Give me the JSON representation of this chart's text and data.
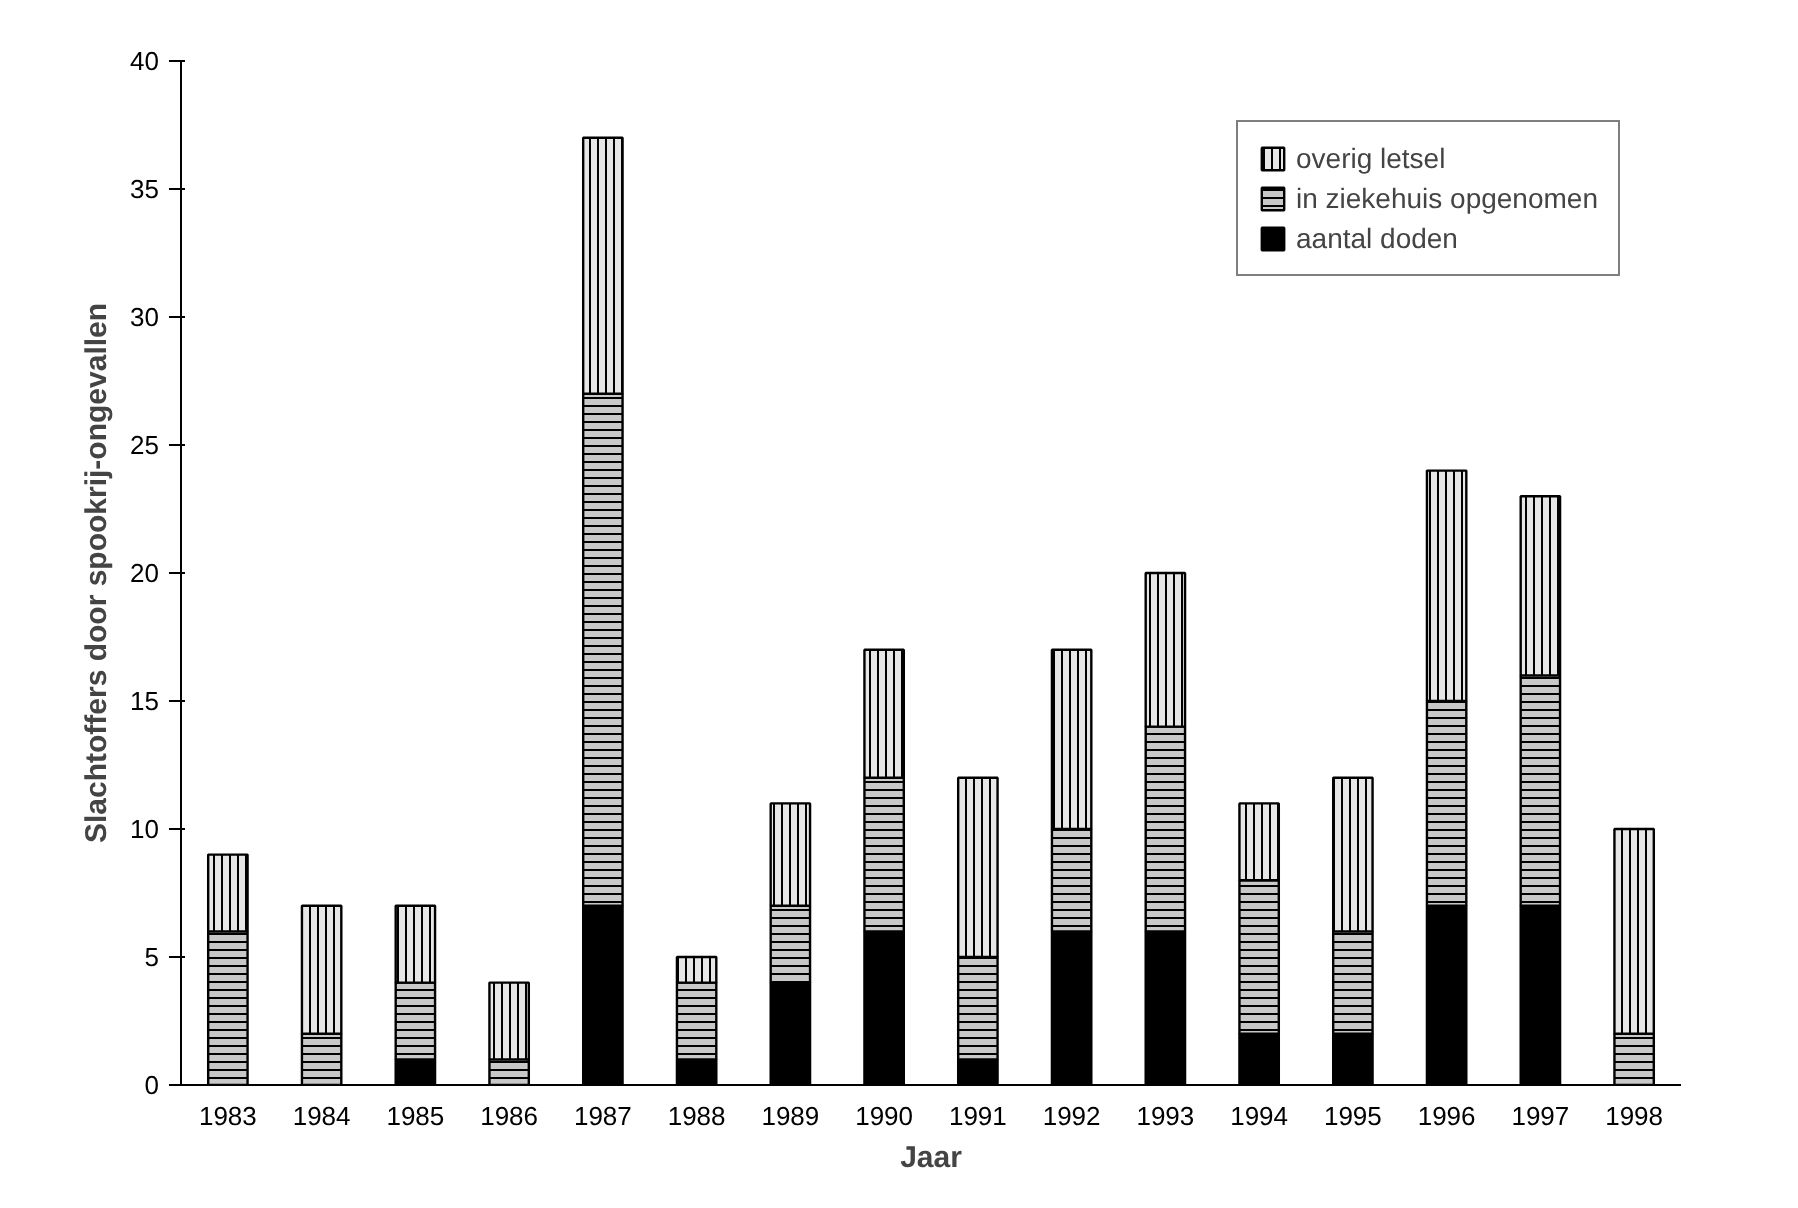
{
  "chart_data": {
    "type": "bar",
    "stacked": true,
    "xlabel": "Jaar",
    "ylabel": "Slachtoffers door spookrij-ongevallen",
    "categories": [
      "1983",
      "1984",
      "1985",
      "1986",
      "1987",
      "1988",
      "1989",
      "1990",
      "1991",
      "1992",
      "1993",
      "1994",
      "1995",
      "1996",
      "1997",
      "1998"
    ],
    "series": [
      {
        "name": "aantal doden",
        "color": "#000000",
        "values": [
          0,
          0,
          1,
          0,
          7,
          1,
          4,
          6,
          1,
          6,
          6,
          2,
          2,
          7,
          7,
          0
        ]
      },
      {
        "name": "in ziekehuis opgenomen",
        "color": "#c8c8c8",
        "values": [
          6,
          2,
          3,
          1,
          20,
          3,
          3,
          6,
          4,
          4,
          8,
          6,
          4,
          8,
          9,
          2
        ]
      },
      {
        "name": "overig letsel",
        "color": "#e6e6e6",
        "values": [
          3,
          5,
          3,
          3,
          10,
          1,
          4,
          5,
          7,
          7,
          6,
          3,
          6,
          9,
          7,
          8
        ]
      }
    ],
    "ylim": [
      0,
      40
    ],
    "yticks": [
      0,
      5,
      10,
      15,
      20,
      25,
      30,
      35,
      40
    ],
    "grid": false,
    "legend": "top right"
  }
}
